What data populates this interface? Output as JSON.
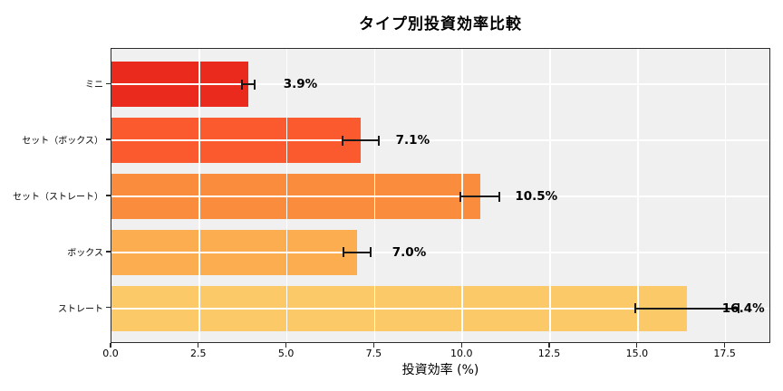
{
  "chart_data": {
    "type": "bar",
    "orientation": "horizontal",
    "title": "タイプ別投資効率比較",
    "xlabel": "投資効率 (%)",
    "categories": [
      "ミニ",
      "セット（ボックス）",
      "セット（ストレート）",
      "ボックス",
      "ストレート"
    ],
    "values": [
      3.9,
      7.1,
      10.5,
      7.0,
      16.4
    ],
    "value_labels": [
      "3.9%",
      "7.1%",
      "10.5%",
      "7.0%",
      "16.4%"
    ],
    "errors": [
      0.21,
      0.55,
      0.59,
      0.42,
      1.5
    ],
    "bar_colors": [
      "#e92a1c",
      "#fa5a2d",
      "#fa8c3e",
      "#fbad4f",
      "#fcc968"
    ],
    "xtick_labels": [
      "0.0",
      "2.5",
      "5.0",
      "7.5",
      "10.0",
      "12.5",
      "15.0",
      "17.5"
    ],
    "xtick_values": [
      0,
      2.5,
      5,
      7.5,
      10,
      12.5,
      15,
      17.5
    ],
    "xlim": [
      0,
      18.8
    ],
    "grid": true,
    "legend": null,
    "plot_bg_color": "#f0f0f0",
    "grid_color": "#ffffff",
    "error_bar_color": "#1a1a1a",
    "spine_color": "#2b2b2b",
    "text_color": "#000000"
  }
}
